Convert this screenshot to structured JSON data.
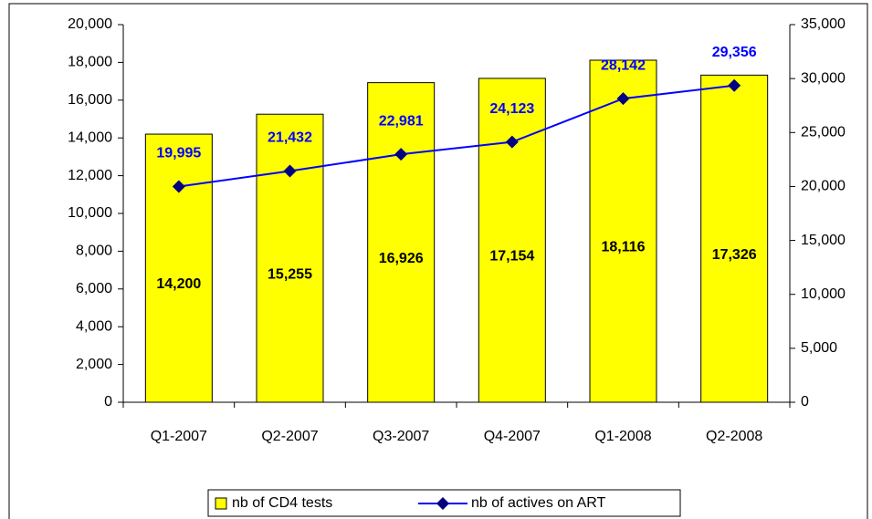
{
  "chart_data": {
    "type": "bar",
    "categories": [
      "Q1-2007",
      "Q2-2007",
      "Q3-2007",
      "Q4-2007",
      "Q1-2008",
      "Q2-2008"
    ],
    "series": [
      {
        "name": "nb of CD4 tests",
        "type": "bar",
        "color": "#ffff00",
        "values": [
          14200,
          15255,
          16926,
          17154,
          18116,
          17326
        ],
        "value_labels": [
          "14,200",
          "15,255",
          "16,926",
          "17,154",
          "18,116",
          "17,326"
        ]
      },
      {
        "name": "nb of actives on ART",
        "type": "line",
        "axis": "y2",
        "color": "#0000ff",
        "marker_color": "#000080",
        "values": [
          19995,
          21432,
          22981,
          24123,
          28142,
          29356
        ],
        "value_labels": [
          "19,995",
          "21,432",
          "22,981",
          "24,123",
          "28,142",
          "29,356"
        ]
      }
    ],
    "ylim": [
      0,
      20000
    ],
    "yticks": [
      0,
      {
        "value": 2000,
        "label": "2,000"
      },
      {
        "value": 4000,
        "label": "4,000"
      },
      {
        "value": 6000,
        "label": "6,000"
      },
      {
        "value": 8000,
        "label": "8,000"
      },
      {
        "value": 10000,
        "label": "10,000"
      },
      {
        "value": 12000,
        "label": "12,000"
      },
      {
        "value": 14000,
        "label": "14,000"
      },
      {
        "value": 16000,
        "label": "16,000"
      },
      {
        "value": 18000,
        "label": "18,000"
      },
      {
        "value": 20000,
        "label": "20,000"
      }
    ],
    "y2lim": [
      0,
      35000
    ],
    "y2ticks": [
      0,
      {
        "value": 5000,
        "label": "5,000"
      },
      {
        "value": 10000,
        "label": "10,000"
      },
      {
        "value": 15000,
        "label": "15,000"
      },
      {
        "value": 20000,
        "label": "20,000"
      },
      {
        "value": 25000,
        "label": "25,000"
      },
      {
        "value": 30000,
        "label": "30,000"
      },
      {
        "value": 35000,
        "label": "35,000"
      }
    ],
    "legend": "bottom"
  }
}
